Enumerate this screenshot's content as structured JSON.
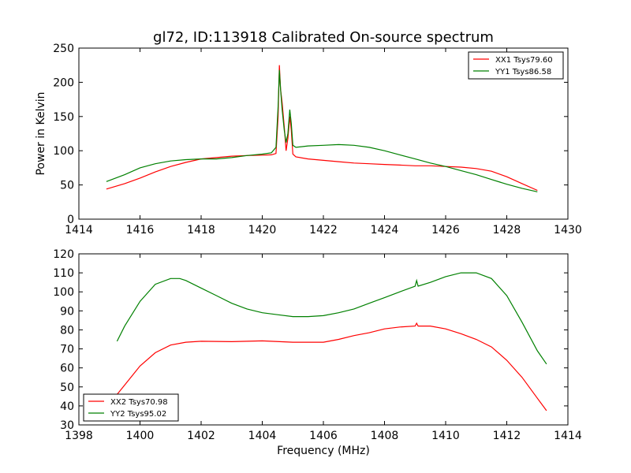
{
  "title": "gl72, ID:113918 Calibrated On-source spectrum",
  "chart_data": [
    {
      "type": "line",
      "ylabel": "Power in Kelvin",
      "xlabel": "",
      "xlim": [
        1414,
        1430
      ],
      "ylim": [
        0,
        250
      ],
      "xticks": [
        1414,
        1416,
        1418,
        1420,
        1422,
        1424,
        1426,
        1428,
        1430
      ],
      "yticks": [
        0,
        50,
        100,
        150,
        200,
        250
      ],
      "legend": "top-right",
      "series": [
        {
          "name": "XX1 Tsys79.60",
          "color": "#ff0000",
          "points": [
            [
              1414.9,
              44
            ],
            [
              1415.5,
              52
            ],
            [
              1416,
              60
            ],
            [
              1416.5,
              69
            ],
            [
              1417,
              77
            ],
            [
              1417.5,
              83
            ],
            [
              1418,
              88
            ],
            [
              1418.5,
              90
            ],
            [
              1419,
              92
            ],
            [
              1419.5,
              93
            ],
            [
              1420,
              93.5
            ],
            [
              1420.3,
              94
            ],
            [
              1420.45,
              96
            ],
            [
              1420.52,
              150
            ],
            [
              1420.56,
              225
            ],
            [
              1420.6,
              190
            ],
            [
              1420.65,
              170
            ],
            [
              1420.72,
              135
            ],
            [
              1420.78,
              100
            ],
            [
              1420.84,
              118
            ],
            [
              1420.9,
              150
            ],
            [
              1420.95,
              130
            ],
            [
              1421,
              95
            ],
            [
              1421.1,
              91
            ],
            [
              1421.5,
              88
            ],
            [
              1422,
              86
            ],
            [
              1422.5,
              84
            ],
            [
              1423,
              82
            ],
            [
              1423.5,
              81
            ],
            [
              1424,
              80
            ],
            [
              1424.5,
              79
            ],
            [
              1425,
              78
            ],
            [
              1425.5,
              78
            ],
            [
              1426,
              77
            ],
            [
              1426.5,
              76
            ],
            [
              1427,
              74
            ],
            [
              1427.5,
              70
            ],
            [
              1428,
              62
            ],
            [
              1428.5,
              52
            ],
            [
              1429,
              42
            ]
          ]
        },
        {
          "name": "YY1 Tsys86.58",
          "color": "#008000",
          "points": [
            [
              1414.9,
              55
            ],
            [
              1415.5,
              65
            ],
            [
              1416,
              75
            ],
            [
              1416.5,
              81
            ],
            [
              1417,
              85
            ],
            [
              1417.5,
              87
            ],
            [
              1418,
              88
            ],
            [
              1418.5,
              88
            ],
            [
              1419,
              90
            ],
            [
              1419.5,
              93
            ],
            [
              1420,
              95
            ],
            [
              1420.3,
              97
            ],
            [
              1420.45,
              105
            ],
            [
              1420.52,
              165
            ],
            [
              1420.56,
              218
            ],
            [
              1420.6,
              190
            ],
            [
              1420.65,
              160
            ],
            [
              1420.72,
              130
            ],
            [
              1420.78,
              112
            ],
            [
              1420.84,
              125
            ],
            [
              1420.9,
              160
            ],
            [
              1420.95,
              140
            ],
            [
              1421,
              108
            ],
            [
              1421.1,
              105
            ],
            [
              1421.5,
              107
            ],
            [
              1422,
              108
            ],
            [
              1422.5,
              109
            ],
            [
              1423,
              108
            ],
            [
              1423.5,
              105
            ],
            [
              1424,
              100
            ],
            [
              1424.5,
              94
            ],
            [
              1425,
              88
            ],
            [
              1425.5,
              82
            ],
            [
              1426,
              77
            ],
            [
              1426.5,
              71
            ],
            [
              1427,
              65
            ],
            [
              1427.5,
              58
            ],
            [
              1428,
              51
            ],
            [
              1428.5,
              45
            ],
            [
              1429,
              40
            ]
          ]
        }
      ]
    },
    {
      "type": "line",
      "ylabel": "",
      "xlabel": "Frequency (MHz)",
      "xlim": [
        1398,
        1414
      ],
      "ylim": [
        30,
        120
      ],
      "xticks": [
        1398,
        1400,
        1402,
        1404,
        1406,
        1408,
        1410,
        1412,
        1414
      ],
      "yticks": [
        30,
        40,
        50,
        60,
        70,
        80,
        90,
        100,
        110,
        120
      ],
      "legend": "bottom-left",
      "series": [
        {
          "name": "XX2 Tsys70.98",
          "color": "#ff0000",
          "points": [
            [
              1399.25,
              46
            ],
            [
              1399.5,
              51
            ],
            [
              1400,
              61
            ],
            [
              1400.5,
              68
            ],
            [
              1401,
              72
            ],
            [
              1401.5,
              73.5
            ],
            [
              1402,
              74
            ],
            [
              1403,
              73.8
            ],
            [
              1404,
              74.2
            ],
            [
              1405,
              73.5
            ],
            [
              1406,
              73.5
            ],
            [
              1406.5,
              75
            ],
            [
              1407,
              77
            ],
            [
              1407.5,
              78.5
            ],
            [
              1408,
              80.5
            ],
            [
              1408.5,
              81.5
            ],
            [
              1409,
              82
            ],
            [
              1409.05,
              83.5
            ],
            [
              1409.1,
              82
            ],
            [
              1409.5,
              82
            ],
            [
              1410,
              80.5
            ],
            [
              1410.5,
              78
            ],
            [
              1411,
              75
            ],
            [
              1411.5,
              71
            ],
            [
              1412,
              64
            ],
            [
              1412.5,
              55
            ],
            [
              1413,
              44
            ],
            [
              1413.3,
              37.5
            ]
          ]
        },
        {
          "name": "YY2 Tsys95.02",
          "color": "#008000",
          "points": [
            [
              1399.25,
              74
            ],
            [
              1399.5,
              82
            ],
            [
              1400,
              95
            ],
            [
              1400.5,
              104
            ],
            [
              1401,
              107
            ],
            [
              1401.3,
              107
            ],
            [
              1401.5,
              106
            ],
            [
              1402,
              102
            ],
            [
              1402.5,
              98
            ],
            [
              1403,
              94
            ],
            [
              1403.5,
              91
            ],
            [
              1404,
              89
            ],
            [
              1404.5,
              88
            ],
            [
              1405,
              87
            ],
            [
              1405.5,
              87
            ],
            [
              1406,
              87.5
            ],
            [
              1406.5,
              89
            ],
            [
              1407,
              91
            ],
            [
              1407.5,
              94
            ],
            [
              1408,
              97
            ],
            [
              1408.5,
              100
            ],
            [
              1409,
              103
            ],
            [
              1409.05,
              106
            ],
            [
              1409.1,
              103
            ],
            [
              1409.5,
              105
            ],
            [
              1410,
              108
            ],
            [
              1410.5,
              110
            ],
            [
              1411,
              110
            ],
            [
              1411.5,
              107
            ],
            [
              1412,
              98
            ],
            [
              1412.5,
              84
            ],
            [
              1413,
              69
            ],
            [
              1413.3,
              62
            ]
          ]
        }
      ]
    }
  ]
}
